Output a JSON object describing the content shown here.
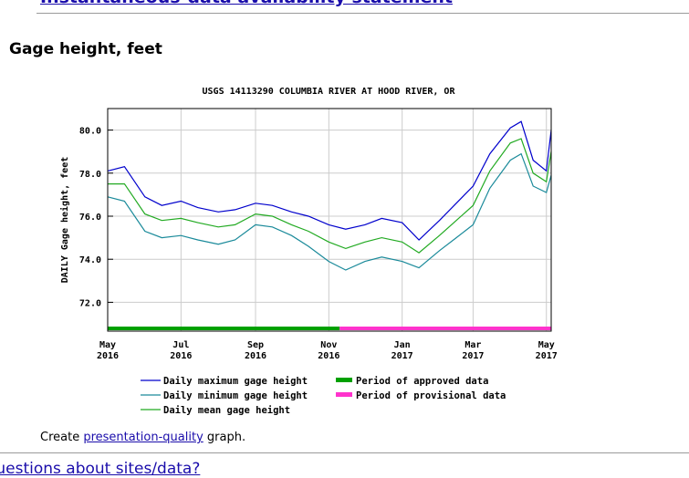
{
  "page": {
    "top_link": "Instantaneous-data availability statement",
    "section_title": "Gage height, feet",
    "create_prefix": "Create ",
    "create_link": "presentation-quality",
    "create_suffix": " graph.",
    "bottom_link": "Questions about sites/data?"
  },
  "chart_data": {
    "type": "line",
    "title": "USGS 14113290 COLUMBIA RIVER AT HOOD RIVER, OR",
    "ylabel": "DAILY Gage height, feet",
    "xlabel": "",
    "ylim": [
      71.0,
      81.0
    ],
    "yticks": [
      72.0,
      74.0,
      76.0,
      78.0,
      80.0
    ],
    "ytick_labels": [
      "72.0",
      "74.0",
      "76.0",
      "78.0",
      "80.0"
    ],
    "xlim": [
      "2016-05-01",
      "2017-05-05"
    ],
    "xticks": [
      {
        "date": "2016-05-01",
        "label1": "May",
        "label2": "2016"
      },
      {
        "date": "2016-07-01",
        "label1": "Jul",
        "label2": "2016"
      },
      {
        "date": "2016-09-01",
        "label1": "Sep",
        "label2": "2016"
      },
      {
        "date": "2016-11-01",
        "label1": "Nov",
        "label2": "2016"
      },
      {
        "date": "2017-01-01",
        "label1": "Jan",
        "label2": "2017"
      },
      {
        "date": "2017-03-01",
        "label1": "Mar",
        "label2": "2017"
      },
      {
        "date": "2017-05-01",
        "label1": "May",
        "label2": "2017"
      }
    ],
    "grid": true,
    "legend_position": "bottom",
    "series": [
      {
        "name": "Daily maximum gage height",
        "color": "#0000cc",
        "points": [
          [
            "2016-05-01",
            78.1
          ],
          [
            "2016-05-15",
            78.3
          ],
          [
            "2016-06-01",
            76.9
          ],
          [
            "2016-06-15",
            76.5
          ],
          [
            "2016-07-01",
            76.7
          ],
          [
            "2016-07-15",
            76.4
          ],
          [
            "2016-08-01",
            76.2
          ],
          [
            "2016-08-15",
            76.3
          ],
          [
            "2016-09-01",
            76.6
          ],
          [
            "2016-09-15",
            76.5
          ],
          [
            "2016-10-01",
            76.2
          ],
          [
            "2016-10-15",
            76.0
          ],
          [
            "2016-11-01",
            75.6
          ],
          [
            "2016-11-15",
            75.4
          ],
          [
            "2016-12-01",
            75.6
          ],
          [
            "2016-12-15",
            75.9
          ],
          [
            "2017-01-01",
            75.7
          ],
          [
            "2017-01-15",
            74.9
          ],
          [
            "2017-02-01",
            75.8
          ],
          [
            "2017-02-15",
            76.6
          ],
          [
            "2017-03-01",
            77.4
          ],
          [
            "2017-03-15",
            78.9
          ],
          [
            "2017-04-01",
            80.1
          ],
          [
            "2017-04-10",
            80.4
          ],
          [
            "2017-04-20",
            78.6
          ],
          [
            "2017-05-01",
            78.1
          ],
          [
            "2017-05-05",
            80.0
          ]
        ]
      },
      {
        "name": "Daily minimum gage height",
        "color": "#1a8a9a",
        "points": [
          [
            "2016-05-01",
            76.9
          ],
          [
            "2016-05-15",
            76.7
          ],
          [
            "2016-06-01",
            75.3
          ],
          [
            "2016-06-15",
            75.0
          ],
          [
            "2016-07-01",
            75.1
          ],
          [
            "2016-07-15",
            74.9
          ],
          [
            "2016-08-01",
            74.7
          ],
          [
            "2016-08-15",
            74.9
          ],
          [
            "2016-09-01",
            75.6
          ],
          [
            "2016-09-15",
            75.5
          ],
          [
            "2016-10-01",
            75.1
          ],
          [
            "2016-10-15",
            74.6
          ],
          [
            "2016-11-01",
            73.9
          ],
          [
            "2016-11-15",
            73.5
          ],
          [
            "2016-12-01",
            73.9
          ],
          [
            "2016-12-15",
            74.1
          ],
          [
            "2017-01-01",
            73.9
          ],
          [
            "2017-01-15",
            73.6
          ],
          [
            "2017-02-01",
            74.4
          ],
          [
            "2017-02-15",
            75.0
          ],
          [
            "2017-03-01",
            75.6
          ],
          [
            "2017-03-15",
            77.3
          ],
          [
            "2017-04-01",
            78.6
          ],
          [
            "2017-04-10",
            78.9
          ],
          [
            "2017-04-20",
            77.4
          ],
          [
            "2017-05-01",
            77.1
          ],
          [
            "2017-05-05",
            77.9
          ]
        ]
      },
      {
        "name": "Daily mean gage height",
        "color": "#22aa22",
        "points": [
          [
            "2016-05-01",
            77.5
          ],
          [
            "2016-05-15",
            77.5
          ],
          [
            "2016-06-01",
            76.1
          ],
          [
            "2016-06-15",
            75.8
          ],
          [
            "2016-07-01",
            75.9
          ],
          [
            "2016-07-15",
            75.7
          ],
          [
            "2016-08-01",
            75.5
          ],
          [
            "2016-08-15",
            75.6
          ],
          [
            "2016-09-01",
            76.1
          ],
          [
            "2016-09-15",
            76.0
          ],
          [
            "2016-10-01",
            75.6
          ],
          [
            "2016-10-15",
            75.3
          ],
          [
            "2016-11-01",
            74.8
          ],
          [
            "2016-11-15",
            74.5
          ],
          [
            "2016-12-01",
            74.8
          ],
          [
            "2016-12-15",
            75.0
          ],
          [
            "2017-01-01",
            74.8
          ],
          [
            "2017-01-15",
            74.3
          ],
          [
            "2017-02-01",
            75.1
          ],
          [
            "2017-02-15",
            75.8
          ],
          [
            "2017-03-01",
            76.5
          ],
          [
            "2017-03-15",
            78.1
          ],
          [
            "2017-04-01",
            79.4
          ],
          [
            "2017-04-10",
            79.6
          ],
          [
            "2017-04-20",
            78.0
          ],
          [
            "2017-05-01",
            77.6
          ],
          [
            "2017-05-05",
            79.0
          ]
        ]
      }
    ],
    "periods": [
      {
        "name": "Period of approved data",
        "color": "#00a000",
        "start": "2016-05-01",
        "end": "2016-11-10"
      },
      {
        "name": "Period of provisional data",
        "color": "#ff33cc",
        "start": "2016-11-10",
        "end": "2017-05-05"
      }
    ]
  }
}
